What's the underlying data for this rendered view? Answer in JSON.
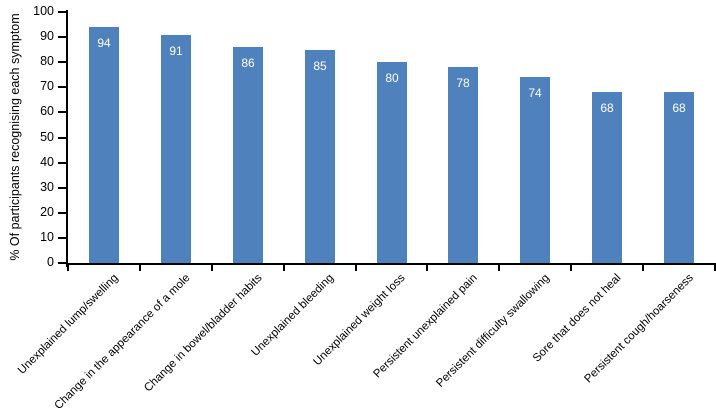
{
  "chart_data": {
    "type": "bar",
    "title": "",
    "xlabel": "",
    "ylabel": "% Of participants recognising each symptom",
    "ylim": [
      0,
      100
    ],
    "yticks": [
      0,
      10,
      20,
      30,
      40,
      50,
      60,
      70,
      80,
      90,
      100
    ],
    "categories": [
      "Unexplained lump/swelling",
      "Change in the appearance of a mole",
      "Change in bowel/bladder habits",
      "Unexplained bleeding",
      "Unexplained weight loss",
      "Persistent unexplained pain",
      "Persistent difficulty swallowing",
      "Sore that does not heal",
      "Persistent cough/hoarseness"
    ],
    "values": [
      94,
      91,
      86,
      85,
      80,
      78,
      74,
      68,
      68
    ],
    "value_labels": [
      "94",
      "91",
      "86",
      "85",
      "80",
      "78",
      "74",
      "68",
      "68"
    ],
    "bar_color": "#4f81bd",
    "value_label_color": "#ffffff",
    "axis_color": "#000000",
    "grid": false,
    "legend": false
  }
}
